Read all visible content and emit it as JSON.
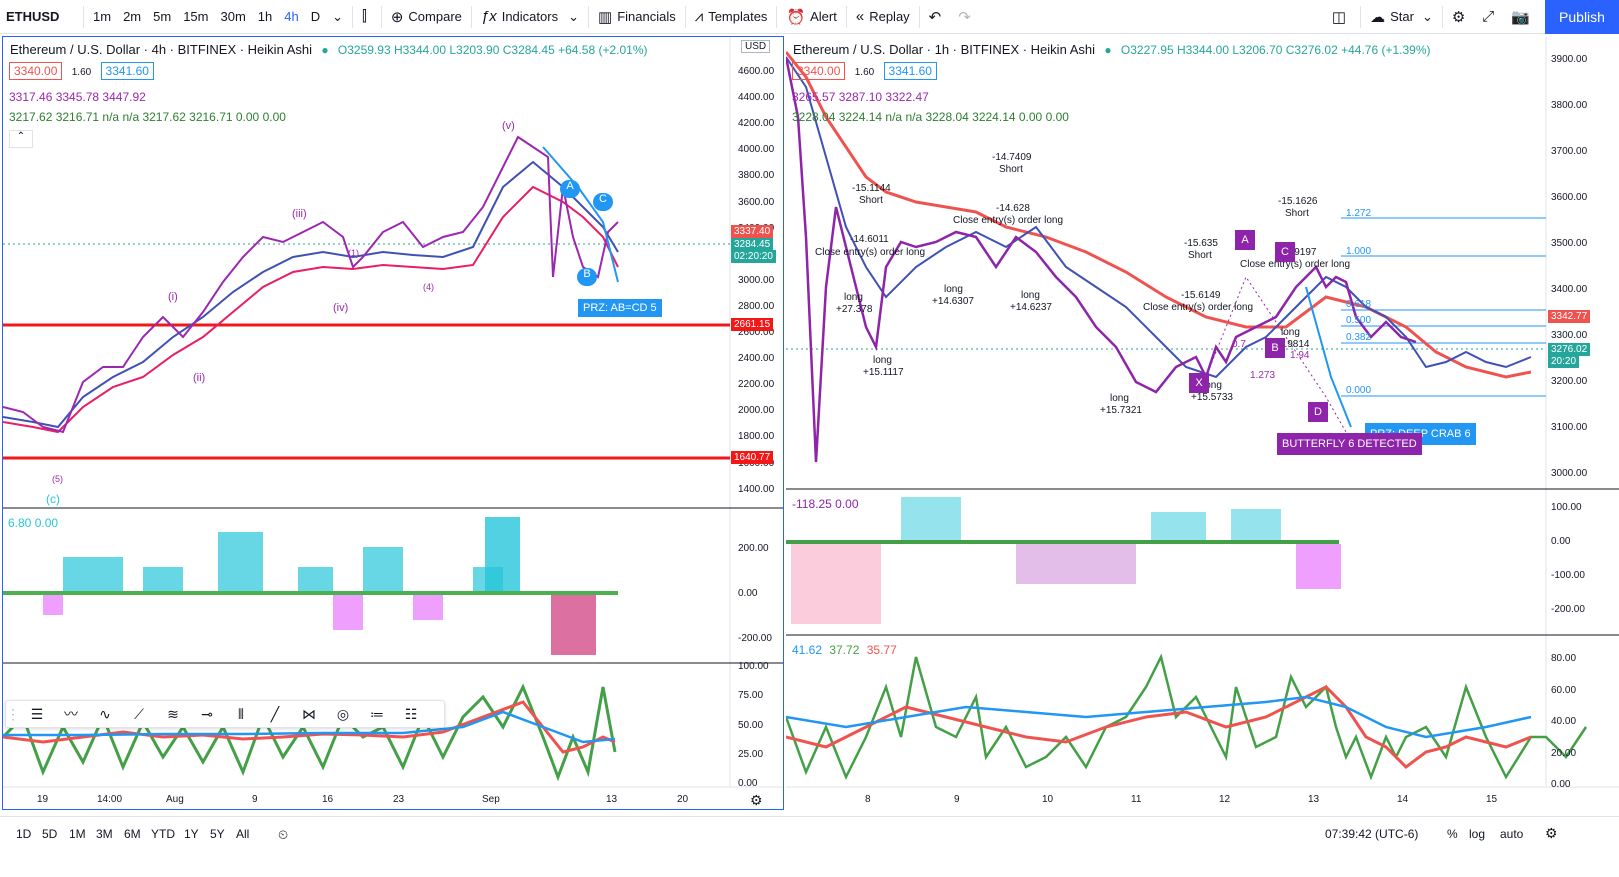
{
  "toolbar": {
    "symbol": "ETHUSD",
    "intervals": [
      "1m",
      "2m",
      "5m",
      "15m",
      "30m",
      "1h",
      "4h",
      "D"
    ],
    "compare": "Compare",
    "indicators": "Indicators",
    "financials": "Financials",
    "templates": "Templates",
    "alert": "Alert",
    "replay": "Replay",
    "star": "Star",
    "publish": "Publish"
  },
  "left_chart": {
    "title": "Ethereum / U.S. Dollar · 4h · BITFINEX · Heikin Ashi",
    "ohlc": "O3259.93 H3344.00 L3203.90 C3284.45 +64.58 (+2.01%)",
    "bid": "3340.00",
    "spread": "1.60",
    "ask": "3341.60",
    "ind1": "3317.46 3345.78 3447.92",
    "ind2": "3217.62 3216.71 n/a n/a 3217.62 3216.71 0.00 0.00",
    "currency": "USD",
    "price_labels": [
      "4600.00",
      "4400.00",
      "4200.00",
      "4000.00",
      "3800.00",
      "3600.00",
      "3400.00",
      "3200.00",
      "3000.00",
      "2800.00",
      "2600.00",
      "2400.00",
      "2200.00",
      "2000.00",
      "1800.00",
      "1600.00",
      "1400.00"
    ],
    "tag_top": "3337.40",
    "tag_last": "3284.45",
    "tag_time": "02:20:20",
    "tag_red1": "2661.15",
    "tag_red2": "1640.77",
    "osc1_vals": "6.80 0.00",
    "osc1_labels": [
      "200.00",
      "0.00",
      "-200.00"
    ],
    "osc2_labels": [
      "100.00",
      "75.00",
      "50.00",
      "25.00",
      "0.00"
    ],
    "dates": [
      "19",
      "14:00",
      "Aug",
      "9",
      "16",
      "23",
      "Sep",
      "13",
      "20"
    ],
    "prz": "PRZ: AB=CD 5",
    "waves": [
      "(v)",
      "(iii)",
      "(iv)",
      "(i)",
      "(ii)",
      "(c)",
      "(5)",
      "(1)",
      "(4)",
      "A",
      "B",
      "C"
    ]
  },
  "right_chart": {
    "title": "Ethereum / U.S. Dollar · 1h · BITFINEX · Heikin Ashi",
    "ohlc": "O3227.95 H3344.00 L3206.70 C3276.02 +44.76 (+1.39%)",
    "bid": "3340.00",
    "spread": "1.60",
    "ask": "3341.60",
    "ind1": "3265.57 3287.10 3322.47",
    "ind2": "3228.04 3224.14 n/a n/a 3228.04 3224.14 0.00 0.00",
    "price_labels": [
      "3900.00",
      "3800.00",
      "3700.00",
      "3600.00",
      "3500.00",
      "3400.00",
      "3300.00",
      "3200.00",
      "3100.00",
      "3000.00"
    ],
    "tag_top": "3342.77",
    "tag_last": "3276.02",
    "tag_time": "20:20",
    "osc1_vals": "-118.25 0.00",
    "osc1_labels": [
      "100.00",
      "0.00",
      "-100.00",
      "-200.00"
    ],
    "osc2_vals": [
      "41.62",
      "37.72",
      "35.77"
    ],
    "osc2_labels": [
      "80.00",
      "60.00",
      "40.00",
      "20.00",
      "0.00"
    ],
    "dates": [
      "8",
      "9",
      "10",
      "11",
      "12",
      "13",
      "14",
      "15"
    ],
    "fib": [
      "1.272",
      "1.000",
      "0.618",
      "0.500",
      "0.382",
      "0.000"
    ],
    "annotations": {
      "s1": "-15.1144",
      "s2": "-14.7409",
      "s3": "-15.1626",
      "s4": "-15.635",
      "short": "Short",
      "l1": "-14.6011",
      "l2": "-14.628",
      "l3": "-15.6149",
      "close_long": "Close entry(s) order long",
      "long": "long",
      "v1": "+27.378",
      "v2": "+14.6307",
      "v3": "+14.6237",
      "v4": "+15.1117",
      "v5": "+15.7321",
      "v6": "+15.5733",
      "v7": "-14.9197",
      "v8": "-14.9814"
    },
    "butterfly": "BUTTERFLY 6 DETECTED",
    "crab": "PRZ: DEEP CRAB 6",
    "points": [
      "A",
      "B",
      "C",
      "D",
      "X"
    ],
    "fib_small": [
      "0.7",
      "1.273",
      "1.94"
    ]
  },
  "bottombar": {
    "ranges": [
      "1D",
      "5D",
      "1M",
      "3M",
      "6M",
      "YTD",
      "1Y",
      "5Y",
      "All"
    ],
    "clock": "07:39:42 (UTC-6)",
    "pct": "%",
    "log": "log",
    "auto": "auto"
  }
}
